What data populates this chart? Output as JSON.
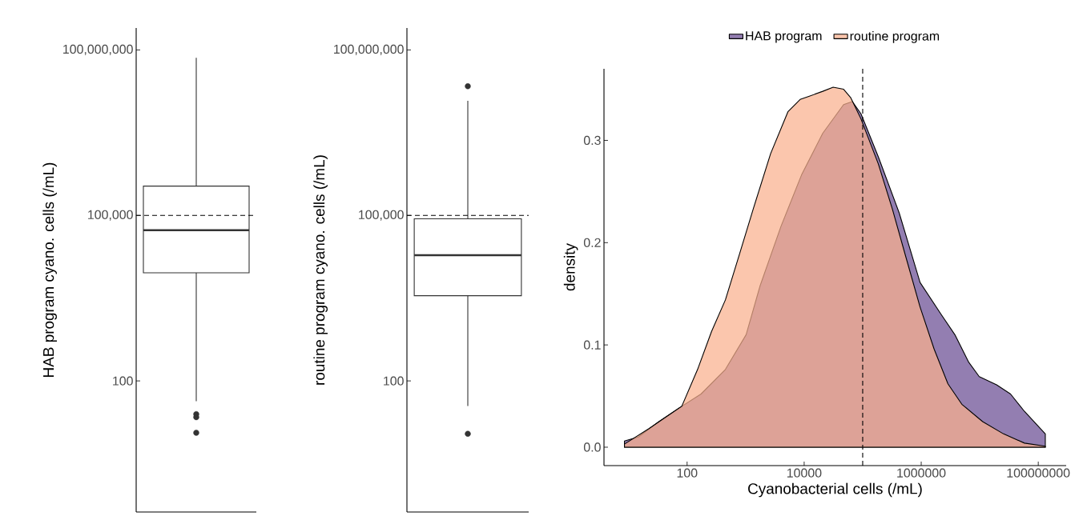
{
  "chart_data": [
    {
      "type": "box",
      "categories": [
        null
      ],
      "ylabel": "HAB program cyano. cells (/mL)",
      "log": true,
      "ylim": [
        0.42,
        250000000
      ],
      "yticks": [
        100,
        {
          "value": 100000,
          "label": "100,000"
        },
        {
          "value": 100000000,
          "label": "100,000,000"
        }
      ],
      "tick_labels": "y",
      "boxes": [
        {
          "low": 43,
          "q1": 9100,
          "median": 54000,
          "q3": 340000,
          "high": 72000000,
          "outliers": [
            25,
            22,
            11.5
          ]
        }
      ],
      "ref_lines": [
        {
          "axis": "y",
          "value": 100000,
          "line_style": "dashed"
        }
      ]
    },
    {
      "type": "box",
      "categories": [
        null
      ],
      "ylabel": "routine program cyano. cells (/mL)",
      "log": true,
      "ylim": [
        0.42,
        250000000
      ],
      "yticks": [
        100,
        {
          "value": 100000,
          "label": "100,000"
        },
        {
          "value": 100000000,
          "label": "100,000,000"
        }
      ],
      "tick_labels": "y",
      "boxes": [
        {
          "low": 35,
          "q1": 3500,
          "median": 19000,
          "q3": 87000,
          "high": 12000000,
          "outliers": [
            22000000,
            11
          ]
        }
      ],
      "ref_lines": [
        {
          "axis": "y",
          "value": 100000,
          "line_style": "dashed"
        }
      ]
    },
    {
      "type": "area",
      "xlabel": "Cyanobacterial cells (/mL)",
      "ylabel": "density",
      "log": "x",
      "xlim": [
        3.8,
        300000000
      ],
      "ylim": [
        -0.018,
        0.37
      ],
      "xticks": [
        100,
        10000,
        1000000,
        100000000
      ],
      "yticks": [
        {
          "value": 0,
          "label": "0.0"
        },
        0.1,
        0.2,
        0.3
      ],
      "legend": "top",
      "ref_lines": [
        {
          "axis": "x",
          "value": 100000,
          "line_style": "dashed"
        }
      ],
      "series": [
        {
          "name": "HAB program",
          "color": "#6a4c93",
          "x": [
            8.5,
            14.7,
            33,
            81,
            173,
            451,
            1020,
            1770,
            4020,
            9140,
            20800,
            47200,
            66400,
            93500,
            185000,
            421000,
            957000,
            2180000,
            3760000,
            6500000,
            9800000,
            19400000,
            33600000,
            58100000,
            132000000
          ],
          "values": [
            0.006,
            0.01,
            0.025,
            0.04,
            0.052,
            0.076,
            0.11,
            0.158,
            0.216,
            0.267,
            0.307,
            0.335,
            0.338,
            0.326,
            0.284,
            0.229,
            0.161,
            0.13,
            0.11,
            0.083,
            0.069,
            0.061,
            0.052,
            0.035,
            0.013
          ]
        },
        {
          "name": "routine program",
          "color": "#f9b08e",
          "x": [
            8.5,
            22,
            81,
            151,
            261,
            451,
            778,
            1350,
            2670,
            5280,
            8530,
            12000,
            20800,
            31300,
            47200,
            62100,
            93500,
            185000,
            321000,
            553000,
            957000,
            1660000,
            2860000,
            4940000,
            11200000,
            25500000,
            58100000,
            132000000
          ],
          "values": [
            0.003,
            0.018,
            0.04,
            0.076,
            0.113,
            0.144,
            0.188,
            0.233,
            0.287,
            0.328,
            0.34,
            0.343,
            0.348,
            0.352,
            0.35,
            0.342,
            0.321,
            0.277,
            0.233,
            0.185,
            0.137,
            0.096,
            0.062,
            0.042,
            0.025,
            0.013,
            0.004,
            0.001
          ]
        }
      ]
    }
  ]
}
